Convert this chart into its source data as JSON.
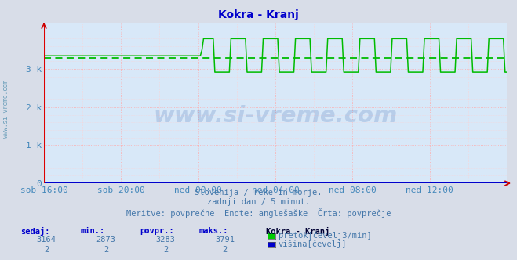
{
  "title": "Kokra - Kranj",
  "title_color": "#0000cc",
  "bg_color": "#d8dde8",
  "plot_bg_color": "#d8e8f8",
  "grid_color_major": "#ffaaaa",
  "grid_color_minor": "#ffd0d0",
  "line_color_pretok": "#00bb00",
  "avg_line_color": "#00bb00",
  "avg_value": 3283,
  "ylim": [
    0,
    4200
  ],
  "x_labels": [
    "sob 16:00",
    "sob 20:00",
    "ned 00:00",
    "ned 04:00",
    "ned 08:00",
    "ned 12:00"
  ],
  "x_label_color": "#4488bb",
  "y_tick_labels": [
    "0",
    "1 k",
    "2 k",
    "3 k"
  ],
  "subtitle1": "Slovenija / reke in morje.",
  "subtitle2": "zadnji dan / 5 minut.",
  "subtitle3": "Meritve: povprečne  Enote: anglešaške  Črta: povprečje",
  "subtitle_color": "#4477aa",
  "legend_title": "Kokra - Kranj",
  "legend_title_color": "#000033",
  "table_headers": [
    "sedaj:",
    "min.:",
    "povpr.:",
    "maks.:"
  ],
  "table_header_color": "#0000cc",
  "table_row1_vals": [
    "3164",
    "2873",
    "3283",
    "3791"
  ],
  "table_row2_vals": [
    "2",
    "2",
    "2",
    "2"
  ],
  "table_val_color": "#4477aa",
  "legend_pretok_color": "#00cc00",
  "legend_visina_color": "#0000cc",
  "label_pretok": "pretok[čevelj3/min]",
  "label_visina": "višina[čevelj]",
  "side_label": "www.si-vreme.com",
  "side_label_color": "#4488aa",
  "watermark": "www.si-vreme.com",
  "watermark_color": "#2255aa",
  "watermark_alpha": 0.18,
  "watermark_logo_yellow": "#ffdd00",
  "watermark_logo_cyan": "#00ccff",
  "watermark_logo_blue": "#0000cc"
}
